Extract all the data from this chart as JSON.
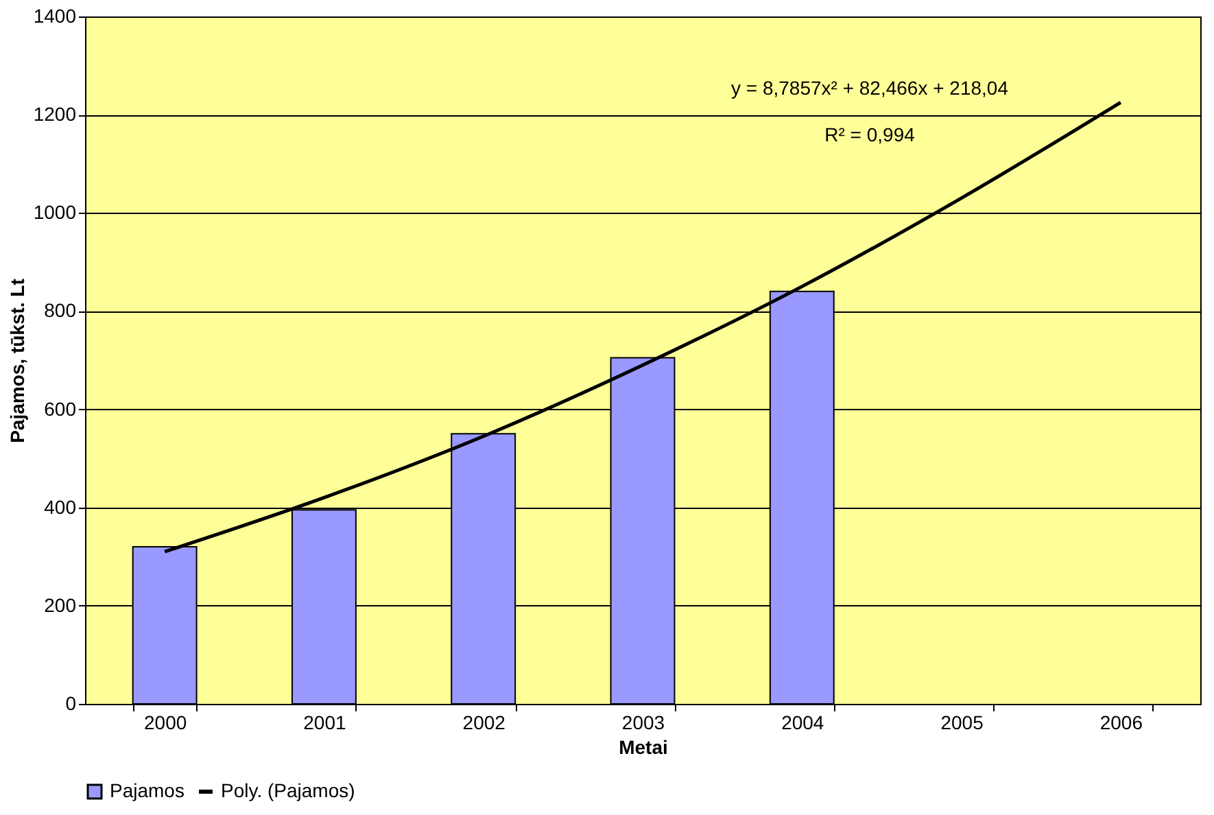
{
  "chart_data": {
    "type": "bar",
    "xlabel": "Metai",
    "ylabel": "Pajamos, tūkst. Lt",
    "categories": [
      "2000",
      "2001",
      "2002",
      "2003",
      "2004",
      "2005",
      "2006"
    ],
    "series": [
      {
        "name": "Pajamos",
        "color": "#9999ff",
        "values": [
          320,
          395,
          550,
          705,
          840,
          null,
          null
        ]
      },
      {
        "name": "Poly. (Pajamos)",
        "type": "line",
        "color": "#000000",
        "values": [
          310,
          420,
          545,
          690,
          850,
          1030,
          1225
        ]
      }
    ],
    "annotations": [
      "y = 8,7857x² + 82,466x + 218,04",
      "R² = 0,994"
    ],
    "ylim": [
      0,
      1400
    ],
    "yticks": [
      0,
      200,
      400,
      600,
      800,
      1000,
      1200,
      1400
    ],
    "grid": "y",
    "legend": "bottom"
  }
}
